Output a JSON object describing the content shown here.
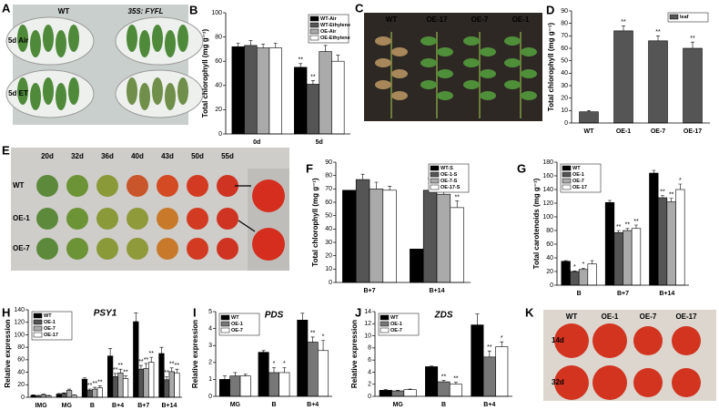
{
  "photos": [
    {
      "panel": "A",
      "labels": [
        "WT",
        "35S: FYFL"
      ],
      "rows": [
        "5d Air",
        "5d ET"
      ]
    },
    {
      "panel": "C",
      "labels": [
        "WT",
        "OE-17",
        "OE-7",
        "OE-1"
      ]
    },
    {
      "panel": "E",
      "labels": [
        "20d",
        "32d",
        "36d",
        "40d",
        "43d",
        "50d",
        "55d"
      ],
      "rows": [
        "WT",
        "OE-1",
        "OE-7"
      ]
    },
    {
      "panel": "K",
      "labels": [
        "WT",
        "OE-1",
        "OE-7",
        "OE-17"
      ],
      "rows": [
        "14d",
        "32d"
      ]
    }
  ],
  "chart_data": [
    {
      "panel": "B",
      "type": "bar",
      "ylabel": "Total chlorophyll (mg g⁻¹)",
      "categories": [
        "0d",
        "5d"
      ],
      "ylim": [
        0,
        100
      ],
      "yticks": [
        0,
        20,
        40,
        60,
        80,
        100
      ],
      "legend": "upper right",
      "series": [
        {
          "name": "WT-Air",
          "color": "#000000",
          "values": [
            72,
            55
          ],
          "errors": [
            3,
            3
          ],
          "significance": [
            null,
            "**"
          ]
        },
        {
          "name": "WT-Ethylene",
          "color": "#555555",
          "values": [
            73,
            41
          ],
          "errors": [
            4,
            3
          ],
          "significance": [
            null,
            "**"
          ]
        },
        {
          "name": "OE-Air",
          "color": "#aaaaaa",
          "values": [
            71,
            68
          ],
          "errors": [
            3,
            5
          ],
          "significance": [
            null,
            null
          ]
        },
        {
          "name": "OE-Ethylene",
          "color": "#ffffff",
          "values": [
            71,
            60
          ],
          "errors": [
            4,
            5
          ],
          "significance": [
            null,
            null
          ]
        }
      ]
    },
    {
      "panel": "D",
      "type": "bar",
      "ylabel": "Total chlorophyll (mg g⁻¹)",
      "categories": [
        "WT",
        "OE-1",
        "OE-7",
        "OE-17"
      ],
      "ylim": [
        0,
        90
      ],
      "yticks": [
        0,
        10,
        20,
        30,
        40,
        50,
        60,
        70,
        80,
        90
      ],
      "legend": "upper right",
      "series": [
        {
          "name": "leaf",
          "color": "#555555",
          "values": [
            9,
            74,
            66,
            60
          ],
          "errors": [
            1,
            4,
            4,
            5
          ],
          "significance": [
            null,
            "**",
            "**",
            "**"
          ]
        }
      ]
    },
    {
      "panel": "F",
      "type": "bar",
      "ylabel": "Total chlorophyll (mg g⁻¹)",
      "categories": [
        "B+7",
        "B+14"
      ],
      "ylim": [
        0,
        90
      ],
      "yticks": [
        0,
        10,
        20,
        30,
        40,
        50,
        60,
        70,
        80,
        90
      ],
      "legend": "upper right",
      "series": [
        {
          "name": "WT-S",
          "color": "#000000",
          "values": [
            69,
            25
          ],
          "errors": [
            0,
            0
          ],
          "significance": [
            null,
            null
          ]
        },
        {
          "name": "OE-1-S",
          "color": "#555555",
          "values": [
            77,
            69
          ],
          "errors": [
            4,
            5
          ],
          "significance": [
            null,
            "**"
          ]
        },
        {
          "name": "OE-7-S",
          "color": "#aaaaaa",
          "values": [
            70,
            66
          ],
          "errors": [
            5,
            4
          ],
          "significance": [
            null,
            "**"
          ]
        },
        {
          "name": "OE-17-S",
          "color": "#ffffff",
          "values": [
            69,
            56
          ],
          "errors": [
            3,
            5
          ],
          "significance": [
            null,
            "**"
          ]
        }
      ]
    },
    {
      "panel": "G",
      "type": "bar",
      "ylabel": "Total carotenoids (mg g⁻¹)",
      "categories": [
        "B",
        "B+7",
        "B+14"
      ],
      "ylim": [
        0,
        180
      ],
      "yticks": [
        0,
        20,
        40,
        60,
        80,
        100,
        120,
        140,
        160,
        180
      ],
      "legend": "upper left",
      "series": [
        {
          "name": "WT",
          "color": "#000000",
          "values": [
            35,
            121,
            164
          ],
          "errors": [
            1,
            3,
            4
          ],
          "significance": [
            null,
            null,
            null
          ]
        },
        {
          "name": "OE-1",
          "color": "#555555",
          "values": [
            20,
            77,
            128
          ],
          "errors": [
            1,
            3,
            3
          ],
          "significance": [
            "*",
            "**",
            "**"
          ]
        },
        {
          "name": "OE-7",
          "color": "#aaaaaa",
          "values": [
            23,
            80,
            122
          ],
          "errors": [
            2,
            3,
            5
          ],
          "significance": [
            "*",
            "**",
            "**"
          ]
        },
        {
          "name": "OE-17",
          "color": "#ffffff",
          "values": [
            31,
            83,
            140
          ],
          "errors": [
            5,
            5,
            8
          ],
          "significance": [
            null,
            "**",
            "*"
          ]
        }
      ]
    },
    {
      "panel": "H",
      "type": "bar",
      "title": "PSY1",
      "ylabel": "Relative expression",
      "categories": [
        "IMG",
        "MG",
        "B",
        "B+4",
        "B+7",
        "B+14"
      ],
      "ylim": [
        0,
        140
      ],
      "yticks": [
        0,
        20,
        40,
        60,
        80,
        100,
        120,
        140
      ],
      "legend": "upper left",
      "series": [
        {
          "name": "WT",
          "color": "#000000",
          "values": [
            3,
            5,
            29,
            66,
            121,
            70
          ],
          "errors": [
            1,
            1,
            2,
            12,
            14,
            10
          ],
          "significance": [
            null,
            null,
            null,
            null,
            null,
            null
          ]
        },
        {
          "name": "OE-1",
          "color": "#555555",
          "values": [
            2,
            6,
            11,
            33,
            45,
            28
          ],
          "errors": [
            1,
            1,
            2,
            5,
            6,
            5
          ],
          "significance": [
            null,
            null,
            "**",
            "**",
            "**",
            "**"
          ]
        },
        {
          "name": "OE-7",
          "color": "#aaaaaa",
          "values": [
            4,
            11,
            13,
            39,
            46,
            41
          ],
          "errors": [
            1,
            2,
            3,
            6,
            8,
            6
          ],
          "significance": [
            null,
            null,
            "**",
            "**",
            "**",
            "**"
          ]
        },
        {
          "name": "OE-17",
          "color": "#ffffff",
          "values": [
            2,
            3,
            15,
            30,
            56,
            39
          ],
          "errors": [
            1,
            1,
            3,
            4,
            8,
            6
          ],
          "significance": [
            null,
            null,
            "**",
            "**",
            "**",
            "**"
          ]
        }
      ]
    },
    {
      "panel": "I",
      "type": "bar",
      "title": "PDS",
      "ylabel": "Relative expression",
      "categories": [
        "MG",
        "B",
        "B+4"
      ],
      "ylim": [
        0,
        5
      ],
      "yticks": [
        0,
        1,
        2,
        3,
        4,
        5
      ],
      "legend": "upper left",
      "series": [
        {
          "name": "WT",
          "color": "#000000",
          "values": [
            1.0,
            2.6,
            4.5
          ],
          "errors": [
            0.2,
            0.1,
            0.4
          ],
          "significance": [
            null,
            null,
            null
          ]
        },
        {
          "name": "OE-1",
          "color": "#777777",
          "values": [
            1.2,
            1.4,
            3.2
          ],
          "errors": [
            0.2,
            0.3,
            0.3
          ],
          "significance": [
            null,
            "*",
            "**"
          ]
        },
        {
          "name": "OE-7",
          "color": "#ffffff",
          "values": [
            1.2,
            1.4,
            2.7
          ],
          "errors": [
            0.1,
            0.3,
            0.6
          ],
          "significance": [
            null,
            "*",
            "*"
          ]
        }
      ]
    },
    {
      "panel": "J",
      "type": "bar",
      "title": "ZDS",
      "ylabel": "Relative expression",
      "categories": [
        "MG",
        "B",
        "B+4"
      ],
      "ylim": [
        0,
        14
      ],
      "yticks": [
        0,
        2,
        4,
        6,
        8,
        10,
        12,
        14
      ],
      "legend": "upper left",
      "series": [
        {
          "name": "WT",
          "color": "#000000",
          "values": [
            1.0,
            4.9,
            11.8
          ],
          "errors": [
            0.1,
            0.1,
            1.8
          ],
          "significance": [
            null,
            null,
            null
          ]
        },
        {
          "name": "OE-1",
          "color": "#777777",
          "values": [
            0.9,
            2.4,
            6.5
          ],
          "errors": [
            0.1,
            0.2,
            1.0
          ],
          "significance": [
            null,
            "**",
            "**"
          ]
        },
        {
          "name": "OE-7",
          "color": "#ffffff",
          "values": [
            1.1,
            2.0,
            8.2
          ],
          "errors": [
            0.1,
            0.3,
            0.8
          ],
          "significance": [
            null,
            "**",
            "*"
          ]
        }
      ]
    }
  ]
}
